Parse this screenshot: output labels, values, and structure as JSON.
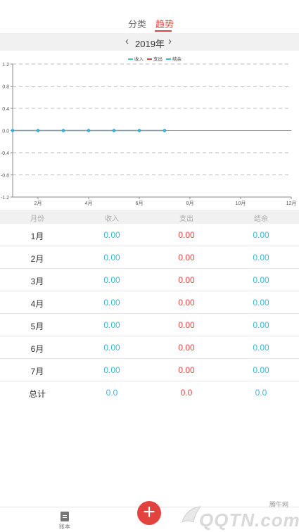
{
  "tabs": {
    "category": "分类",
    "trend": "趋势",
    "active": "trend"
  },
  "year": {
    "label": "2019年",
    "prev": "‹",
    "next": "›"
  },
  "chart_data": {
    "type": "line",
    "legend": [
      "收入",
      "支出",
      "结余"
    ],
    "legend_position": "top-right",
    "series_colors": [
      "#3ecbb5",
      "#e3433f",
      "#38b8d6"
    ],
    "x": [
      1,
      2,
      3,
      4,
      5,
      6,
      7
    ],
    "series": [
      {
        "name": "收入",
        "values": [
          0,
          0,
          0,
          0,
          0,
          0,
          0
        ]
      },
      {
        "name": "支出",
        "values": [
          0,
          0,
          0,
          0,
          0,
          0,
          0
        ]
      },
      {
        "name": "结余",
        "values": [
          0,
          0,
          0,
          0,
          0,
          0,
          0
        ]
      }
    ],
    "xticks": [
      "2月",
      "4月",
      "6月",
      "8月",
      "10月",
      "12月"
    ],
    "xtick_positions": [
      2,
      4,
      6,
      8,
      10,
      12
    ],
    "xlim": [
      1,
      12
    ],
    "ylim": [
      -1.2,
      1.2
    ],
    "yticks": [
      "1.2",
      "0.8",
      "0.4",
      "0.0",
      "-0.4",
      "-0.8",
      "-1.2"
    ],
    "ytick_values": [
      1.2,
      0.8,
      0.4,
      0.0,
      -0.4,
      -0.8,
      -1.2
    ],
    "grid": true
  },
  "table": {
    "headers": {
      "month": "月份",
      "income": "收入",
      "expense": "支出",
      "balance": "结余"
    },
    "rows": [
      {
        "month": "1月",
        "income": "0.00",
        "expense": "0.00",
        "balance": "0.00"
      },
      {
        "month": "2月",
        "income": "0.00",
        "expense": "0.00",
        "balance": "0.00"
      },
      {
        "month": "3月",
        "income": "0.00",
        "expense": "0.00",
        "balance": "0.00"
      },
      {
        "month": "4月",
        "income": "0.00",
        "expense": "0.00",
        "balance": "0.00"
      },
      {
        "month": "5月",
        "income": "0.00",
        "expense": "0.00",
        "balance": "0.00"
      },
      {
        "month": "6月",
        "income": "0.00",
        "expense": "0.00",
        "balance": "0.00"
      },
      {
        "month": "7月",
        "income": "0.00",
        "expense": "0.00",
        "balance": "0.00"
      }
    ],
    "total": {
      "month": "总计",
      "income": "0.0",
      "expense": "0.0",
      "balance": "0.0"
    }
  },
  "nav": {
    "book_label": "账本",
    "add_icon": "plus-icon",
    "add_symbol": "+"
  },
  "watermark": {
    "small": "腾牛网",
    "big": "QQTN.com"
  },
  "colors": {
    "accent": "#e3433f",
    "income": "#38b8d6",
    "expense": "#e3433f"
  }
}
